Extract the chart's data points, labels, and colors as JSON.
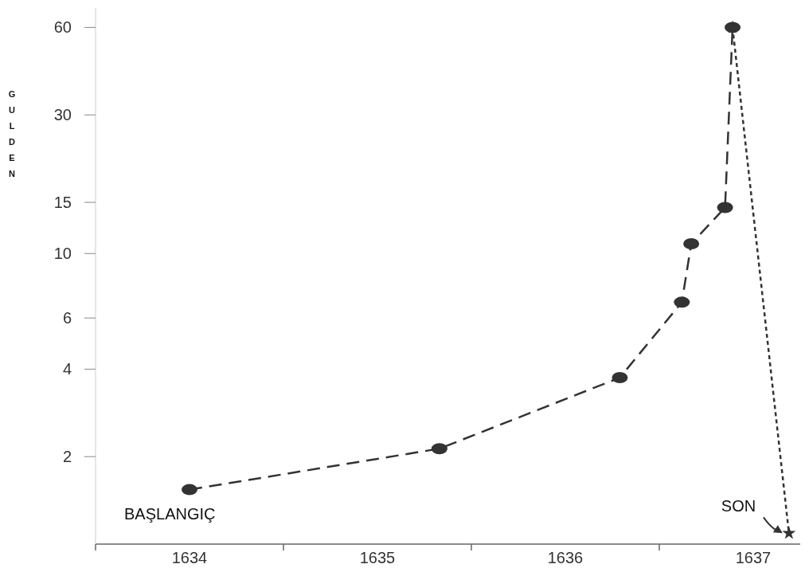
{
  "chart_data": {
    "type": "line",
    "ylabel": "GULDEN",
    "log": true,
    "grid": false,
    "xlim": [
      1633.5,
      1637.25
    ],
    "xticks": [
      {
        "value": 1633.5,
        "label": null
      },
      1634,
      {
        "value": 1634.5,
        "label": null
      },
      1635,
      {
        "value": 1635.5,
        "label": null
      },
      1636,
      {
        "value": 1636.5,
        "label": null
      },
      1637
    ],
    "ylim": [
      1,
      70
    ],
    "yticks": [
      2,
      4,
      6,
      10,
      15,
      30,
      60
    ],
    "series": [
      {
        "color": "#333333",
        "marker": "circle",
        "line_style": "dashed",
        "x": [
          1634.0,
          1635.33,
          1636.29,
          1636.62,
          1636.67,
          1636.85,
          1636.89
        ],
        "values": [
          1.54,
          2.13,
          3.74,
          6.8,
          10.8,
          14.4,
          60
        ]
      },
      {
        "color": "#333333",
        "marker": "star",
        "line_style": "dotted",
        "x": [
          1636.89,
          1637.19
        ],
        "values": [
          60,
          1.09
        ]
      }
    ],
    "annotations": [
      {
        "text": "BAŞLANGIÇ",
        "x": 1634.0,
        "y": 1.54
      },
      {
        "text": "SON",
        "x": 1637.19,
        "y": 1.09
      }
    ]
  }
}
